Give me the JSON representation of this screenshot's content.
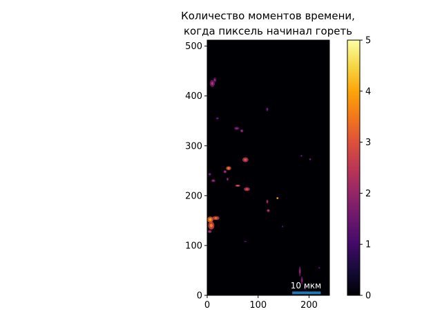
{
  "chart_data": {
    "type": "heatmap",
    "title_lines": [
      "Количество моментов времени,",
      "когда пиксель начинал гореть"
    ],
    "xlim": [
      0,
      240
    ],
    "ylim": [
      0,
      512
    ],
    "x_ticks": [
      0,
      100,
      200
    ],
    "y_ticks": [
      0,
      100,
      200,
      300,
      400,
      500
    ],
    "colormap": "inferno",
    "colorbar": {
      "range": [
        0,
        5
      ],
      "ticks": [
        0,
        1,
        2,
        3,
        4,
        5
      ]
    },
    "background_value": 0,
    "scalebar": {
      "label": "10 мкм",
      "x_start": 167,
      "x_end": 223,
      "y": 5,
      "color": "#1f77b4"
    },
    "features": [
      {
        "x": 10,
        "y": 425,
        "rx": 5,
        "ry": 7,
        "value": 1.6
      },
      {
        "x": 15,
        "y": 432,
        "rx": 3,
        "ry": 5,
        "value": 1.3
      },
      {
        "x": 20,
        "y": 355,
        "rx": 3,
        "ry": 2,
        "value": 1.2
      },
      {
        "x": 58,
        "y": 335,
        "rx": 5,
        "ry": 3,
        "value": 1.4
      },
      {
        "x": 68,
        "y": 330,
        "rx": 3,
        "ry": 3,
        "value": 1.6
      },
      {
        "x": 118,
        "y": 373,
        "rx": 2,
        "ry": 4,
        "value": 1.3
      },
      {
        "x": 75,
        "y": 272,
        "rx": 6,
        "ry": 5,
        "value": 2.3
      },
      {
        "x": 42,
        "y": 255,
        "rx": 5,
        "ry": 4,
        "value": 2.8
      },
      {
        "x": 35,
        "y": 248,
        "rx": 3,
        "ry": 3,
        "value": 1.8
      },
      {
        "x": 5,
        "y": 243,
        "rx": 3,
        "ry": 3,
        "value": 1.2
      },
      {
        "x": 12,
        "y": 230,
        "rx": 4,
        "ry": 3,
        "value": 1.5
      },
      {
        "x": 40,
        "y": 233,
        "rx": 2,
        "ry": 3,
        "value": 1.6
      },
      {
        "x": 60,
        "y": 220,
        "rx": 5,
        "ry": 2,
        "value": 2.5
      },
      {
        "x": 78,
        "y": 213,
        "rx": 6,
        "ry": 4,
        "value": 2.2
      },
      {
        "x": 118,
        "y": 188,
        "rx": 2,
        "ry": 4,
        "value": 1.9
      },
      {
        "x": 120,
        "y": 170,
        "rx": 3,
        "ry": 3,
        "value": 2.0
      },
      {
        "x": 138,
        "y": 195,
        "rx": 2,
        "ry": 2,
        "value": 3.6
      },
      {
        "x": 6,
        "y": 152,
        "rx": 6,
        "ry": 6,
        "value": 3.2
      },
      {
        "x": 17,
        "y": 155,
        "rx": 7,
        "ry": 4,
        "value": 2.6
      },
      {
        "x": 8,
        "y": 140,
        "rx": 6,
        "ry": 8,
        "value": 2.8
      },
      {
        "x": 5,
        "y": 128,
        "rx": 4,
        "ry": 3,
        "value": 1.8
      },
      {
        "x": 148,
        "y": 138,
        "rx": 1,
        "ry": 2,
        "value": 1.0
      },
      {
        "x": 75,
        "y": 108,
        "rx": 3,
        "ry": 1,
        "value": 0.8
      },
      {
        "x": 185,
        "y": 280,
        "rx": 2,
        "ry": 2,
        "value": 1.0
      },
      {
        "x": 202,
        "y": 273,
        "rx": 2,
        "ry": 2,
        "value": 1.4
      },
      {
        "x": 182,
        "y": 48,
        "rx": 2,
        "ry": 10,
        "value": 1.5
      },
      {
        "x": 186,
        "y": 30,
        "rx": 2,
        "ry": 8,
        "value": 1.4
      },
      {
        "x": 192,
        "y": 16,
        "rx": 2,
        "ry": 5,
        "value": 1.3
      },
      {
        "x": 220,
        "y": 55,
        "rx": 2,
        "ry": 1,
        "value": 1.0
      }
    ]
  }
}
